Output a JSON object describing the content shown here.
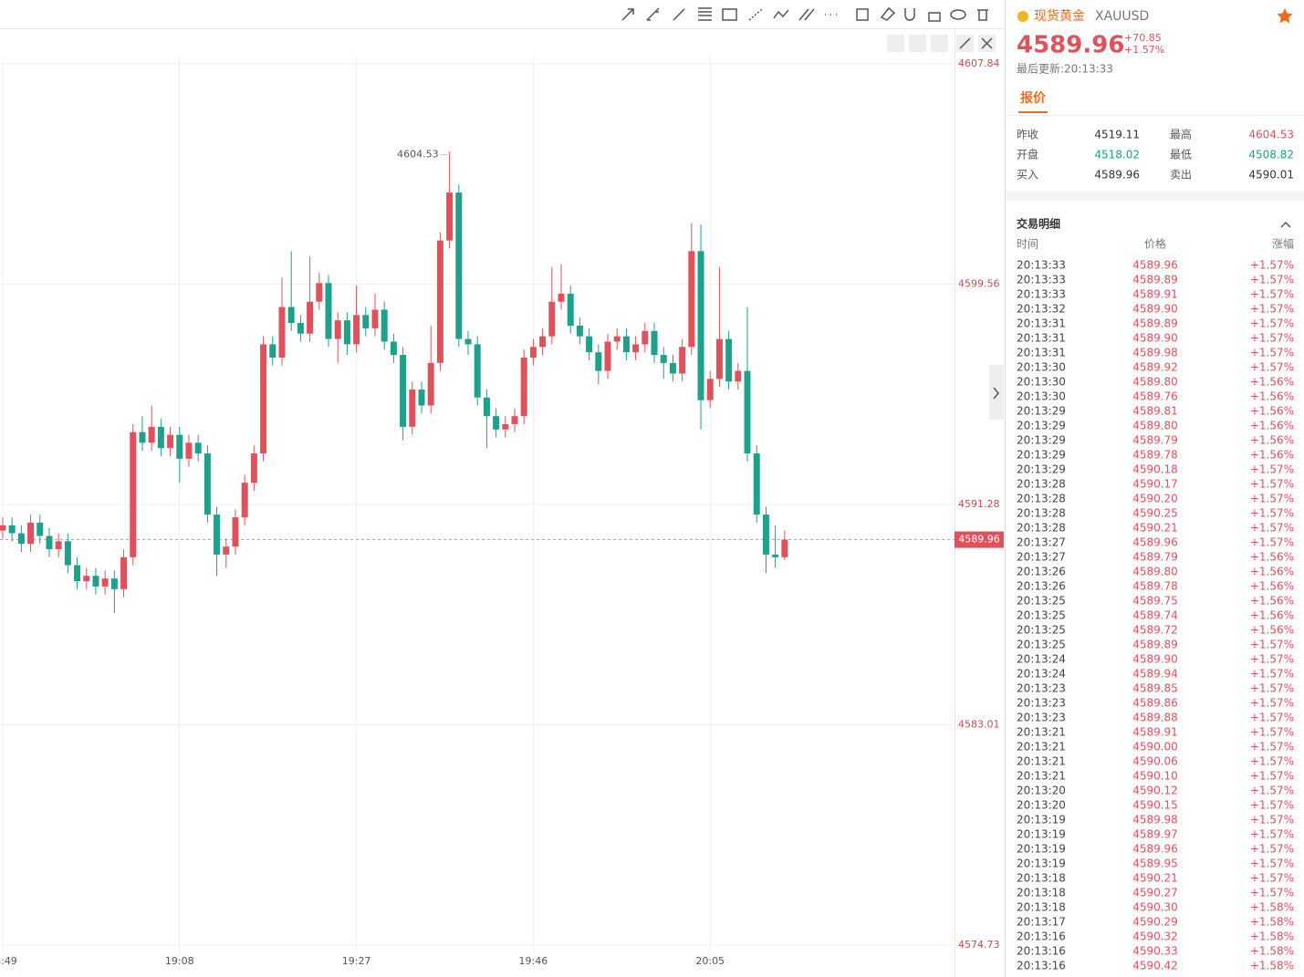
{
  "chart_data": {
    "type": "candlestick",
    "open": [
      4590.3,
      4590.5,
      4590.2,
      4589.8,
      4590.6,
      4590.1,
      4589.6,
      4589.9,
      4589.0,
      4588.4,
      4588.6,
      4588.2,
      4588.5,
      4588.1,
      4589.3,
      4594.0,
      4593.6,
      4594.2,
      4593.4,
      4593.9,
      4593.0,
      4593.6,
      4593.2,
      4590.9,
      4589.4,
      4589.7,
      4590.8,
      4592.1,
      4593.2,
      4597.3,
      4596.8,
      4598.7,
      4598.1,
      4597.7,
      4598.9,
      4599.6,
      4597.5,
      4598.2,
      4597.3,
      4598.4,
      4597.9,
      4598.6,
      4597.4,
      4596.9,
      4594.2,
      4595.6,
      4595.0,
      4596.6,
      4601.2,
      4603.0,
      4597.5,
      4597.3,
      4595.3,
      4594.6,
      4594.1,
      4594.3,
      4594.6,
      4596.8,
      4597.2,
      4597.6,
      4598.9,
      4599.2,
      4598.0,
      4597.6,
      4597.0,
      4596.3,
      4597.4,
      4597.6,
      4597.0,
      4597.3,
      4597.8,
      4596.9,
      4596.6,
      4596.2,
      4597.2,
      4600.8,
      4595.2,
      4596.0,
      4597.5,
      4595.9,
      4596.3,
      4593.2,
      4590.9,
      4589.4,
      4589.3
    ],
    "high": [
      4590.8,
      4590.8,
      4590.5,
      4590.9,
      4590.9,
      4590.4,
      4590.2,
      4590.2,
      4589.3,
      4588.9,
      4588.9,
      4588.8,
      4588.8,
      4589.6,
      4594.3,
      4594.6,
      4595.0,
      4594.5,
      4594.2,
      4594.2,
      4593.9,
      4593.9,
      4593.5,
      4591.2,
      4590.0,
      4591.1,
      4592.4,
      4593.5,
      4597.6,
      4597.6,
      4599.8,
      4600.8,
      4598.4,
      4600.6,
      4600.0,
      4599.9,
      4598.5,
      4598.5,
      4599.5,
      4598.7,
      4599.2,
      4598.9,
      4597.7,
      4597.2,
      4595.9,
      4595.9,
      4598.0,
      4601.5,
      4604.53,
      4603.3,
      4597.8,
      4597.6,
      4595.6,
      4594.9,
      4594.6,
      4594.9,
      4597.1,
      4597.5,
      4597.9,
      4600.2,
      4600.3,
      4599.5,
      4598.3,
      4597.9,
      4597.3,
      4597.7,
      4597.9,
      4597.9,
      4597.6,
      4598.1,
      4598.1,
      4597.2,
      4596.9,
      4597.5,
      4601.85,
      4601.8,
      4596.3,
      4600.2,
      4597.8,
      4596.6,
      4598.7,
      4593.5,
      4591.2,
      4590.5,
      4590.3
    ],
    "low": [
      4590.0,
      4589.9,
      4589.5,
      4589.5,
      4589.8,
      4589.3,
      4589.3,
      4588.7,
      4588.1,
      4588.1,
      4587.9,
      4587.9,
      4587.2,
      4587.8,
      4589.0,
      4593.3,
      4593.3,
      4593.1,
      4593.1,
      4592.1,
      4592.7,
      4592.9,
      4590.6,
      4588.6,
      4588.9,
      4589.4,
      4590.5,
      4591.8,
      4592.9,
      4596.5,
      4596.5,
      4597.8,
      4597.4,
      4597.4,
      4598.6,
      4597.2,
      4596.6,
      4596.9,
      4597.0,
      4597.6,
      4597.6,
      4597.1,
      4596.6,
      4593.7,
      4593.9,
      4594.7,
      4594.7,
      4596.3,
      4600.9,
      4597.2,
      4596.9,
      4595.0,
      4593.4,
      4593.8,
      4593.8,
      4594.0,
      4594.3,
      4596.5,
      4596.9,
      4597.3,
      4598.6,
      4597.7,
      4597.3,
      4596.7,
      4595.8,
      4596.0,
      4597.1,
      4596.7,
      4596.7,
      4597.0,
      4596.6,
      4596.0,
      4595.9,
      4595.9,
      4596.9,
      4594.1,
      4594.9,
      4595.7,
      4595.6,
      4595.6,
      4592.9,
      4590.6,
      4588.7,
      4588.9,
      4589.2
    ],
    "close": [
      4590.5,
      4590.2,
      4589.8,
      4590.6,
      4590.1,
      4589.6,
      4589.9,
      4589.0,
      4588.4,
      4588.6,
      4588.2,
      4588.5,
      4588.1,
      4589.3,
      4594.0,
      4593.6,
      4594.2,
      4593.4,
      4593.9,
      4593.0,
      4593.6,
      4593.2,
      4590.9,
      4589.4,
      4589.7,
      4590.8,
      4592.1,
      4593.2,
      4597.3,
      4596.8,
      4598.7,
      4598.1,
      4597.7,
      4598.9,
      4599.6,
      4597.5,
      4598.2,
      4597.3,
      4598.4,
      4597.9,
      4598.6,
      4597.4,
      4596.9,
      4594.2,
      4595.6,
      4595.0,
      4596.6,
      4601.2,
      4603.0,
      4597.5,
      4597.3,
      4595.3,
      4594.6,
      4594.1,
      4594.3,
      4594.6,
      4596.8,
      4597.2,
      4597.6,
      4598.9,
      4599.2,
      4598.0,
      4597.6,
      4597.0,
      4596.3,
      4597.4,
      4597.6,
      4597.0,
      4597.3,
      4597.8,
      4596.9,
      4596.6,
      4596.2,
      4597.2,
      4600.8,
      4595.2,
      4596.0,
      4597.5,
      4595.9,
      4596.3,
      4593.2,
      4590.9,
      4589.4,
      4589.3,
      4589.96
    ],
    "up_color": "#e0525b",
    "down_color": "#1ea08a",
    "xlim": [
      -0.29,
      102.25
    ],
    "xticks": [
      {
        "value": 0,
        "label": "18:49"
      },
      {
        "value": 19,
        "label": "19:08"
      },
      {
        "value": 38,
        "label": "19:27"
      },
      {
        "value": 57,
        "label": "19:46"
      },
      {
        "value": 76,
        "label": "20:05"
      }
    ],
    "ylim": [
      4574.42,
      4608.11
    ],
    "yticks": [
      4574.73,
      4583.01,
      4591.28,
      4599.56,
      4607.84
    ],
    "grid": true
  },
  "panel": {
    "name": "现货黄金",
    "symbol": "XAUUSD",
    "price": "4589.96",
    "change": "+70.85",
    "change_pct": "+1.57%",
    "updated": "最后更新:20:13:33",
    "tab": "报价",
    "stats": [
      [
        "昨收",
        "4519.11",
        "最高",
        "4604.53"
      ],
      [
        "开盘",
        "4518.02",
        "最低",
        "4508.82"
      ],
      [
        "买入",
        "4589.96",
        "卖出",
        "4590.01"
      ]
    ],
    "trades_title": "交易明细",
    "trades_header": [
      "时间",
      "价格",
      "涨幅"
    ],
    "trades": [
      [
        "20:13:33",
        "4589.96",
        "+1.57%"
      ],
      [
        "20:13:33",
        "4589.89",
        "+1.57%"
      ],
      [
        "20:13:33",
        "4589.91",
        "+1.57%"
      ],
      [
        "20:13:32",
        "4589.90",
        "+1.57%"
      ],
      [
        "20:13:31",
        "4589.89",
        "+1.57%"
      ],
      [
        "20:13:31",
        "4589.90",
        "+1.57%"
      ],
      [
        "20:13:31",
        "4589.98",
        "+1.57%"
      ],
      [
        "20:13:30",
        "4589.92",
        "+1.57%"
      ],
      [
        "20:13:30",
        "4589.80",
        "+1.56%"
      ],
      [
        "20:13:30",
        "4589.76",
        "+1.56%"
      ],
      [
        "20:13:29",
        "4589.81",
        "+1.56%"
      ],
      [
        "20:13:29",
        "4589.80",
        "+1.56%"
      ],
      [
        "20:13:29",
        "4589.79",
        "+1.56%"
      ],
      [
        "20:13:29",
        "4589.78",
        "+1.56%"
      ],
      [
        "20:13:29",
        "4590.18",
        "+1.57%"
      ],
      [
        "20:13:28",
        "4590.17",
        "+1.57%"
      ],
      [
        "20:13:28",
        "4590.20",
        "+1.57%"
      ],
      [
        "20:13:28",
        "4590.25",
        "+1.57%"
      ],
      [
        "20:13:28",
        "4590.21",
        "+1.57%"
      ],
      [
        "20:13:27",
        "4589.96",
        "+1.57%"
      ],
      [
        "20:13:27",
        "4589.79",
        "+1.56%"
      ],
      [
        "20:13:26",
        "4589.80",
        "+1.56%"
      ],
      [
        "20:13:26",
        "4589.78",
        "+1.56%"
      ],
      [
        "20:13:25",
        "4589.75",
        "+1.56%"
      ],
      [
        "20:13:25",
        "4589.74",
        "+1.56%"
      ],
      [
        "20:13:25",
        "4589.72",
        "+1.56%"
      ],
      [
        "20:13:25",
        "4589.89",
        "+1.57%"
      ],
      [
        "20:13:24",
        "4589.90",
        "+1.57%"
      ],
      [
        "20:13:24",
        "4589.94",
        "+1.57%"
      ],
      [
        "20:13:23",
        "4589.85",
        "+1.57%"
      ],
      [
        "20:13:23",
        "4589.86",
        "+1.57%"
      ],
      [
        "20:13:23",
        "4589.88",
        "+1.57%"
      ],
      [
        "20:13:21",
        "4589.91",
        "+1.57%"
      ],
      [
        "20:13:21",
        "4590.00",
        "+1.57%"
      ],
      [
        "20:13:21",
        "4590.06",
        "+1.57%"
      ],
      [
        "20:13:21",
        "4590.10",
        "+1.57%"
      ],
      [
        "20:13:20",
        "4590.12",
        "+1.57%"
      ],
      [
        "20:13:20",
        "4590.15",
        "+1.57%"
      ],
      [
        "20:13:19",
        "4589.98",
        "+1.57%"
      ],
      [
        "20:13:19",
        "4589.97",
        "+1.57%"
      ],
      [
        "20:13:19",
        "4589.96",
        "+1.57%"
      ],
      [
        "20:13:19",
        "4589.95",
        "+1.57%"
      ],
      [
        "20:13:18",
        "4590.21",
        "+1.57%"
      ],
      [
        "20:13:18",
        "4590.27",
        "+1.57%"
      ],
      [
        "20:13:18",
        "4590.30",
        "+1.58%"
      ],
      [
        "20:13:17",
        "4590.29",
        "+1.58%"
      ],
      [
        "20:13:16",
        "4590.32",
        "+1.58%"
      ],
      [
        "20:13:16",
        "4590.33",
        "+1.58%"
      ],
      [
        "20:13:16",
        "4590.42",
        "+1.58%"
      ]
    ]
  }
}
